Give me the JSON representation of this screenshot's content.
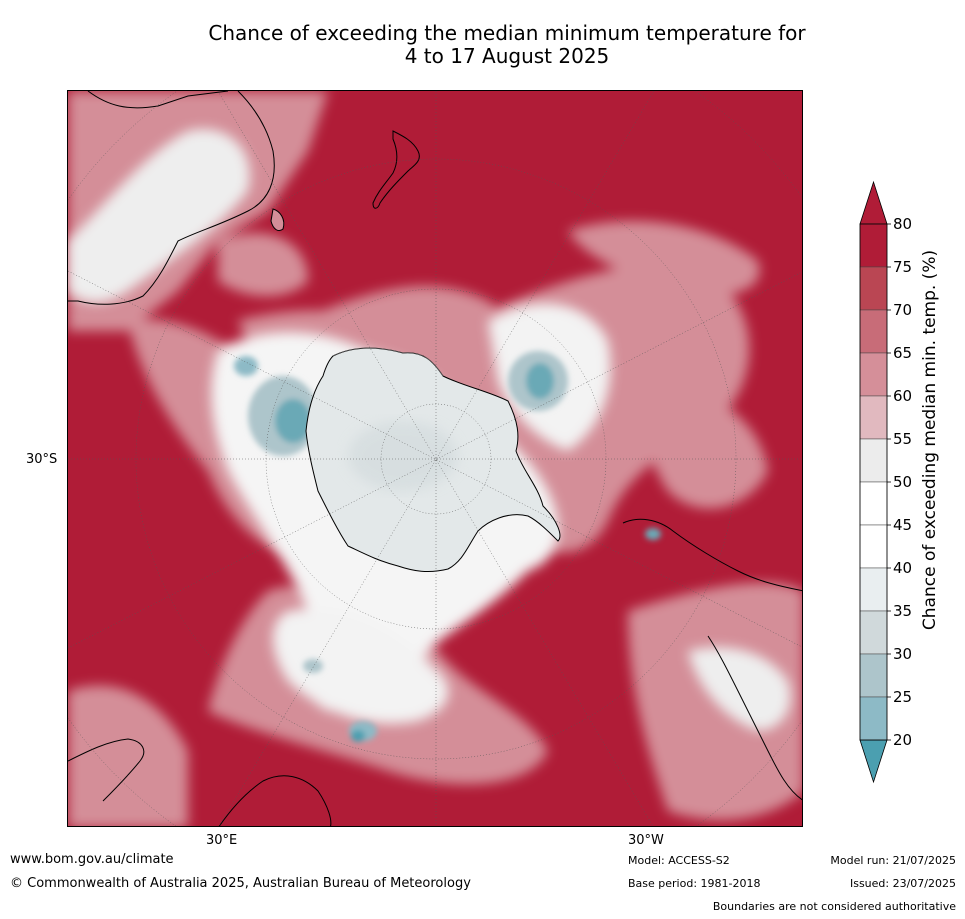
{
  "title": {
    "line1": "Chance of exceeding the median minimum temperature for",
    "line2": "4 to 17 August 2025"
  },
  "map": {
    "projection": "south polar stereographic",
    "axis_labels": {
      "lat_30s": "30°S",
      "lon_30e": "30°E",
      "lon_30w": "30°W"
    }
  },
  "colorbar": {
    "label": "Chance of exceeding median min. temp. (%)",
    "ticks": [
      "20",
      "25",
      "30",
      "35",
      "40",
      "45",
      "50",
      "55",
      "60",
      "65",
      "70",
      "75",
      "80"
    ],
    "colors": [
      "#6aa9b6",
      "#8dbac6",
      "#adc5cb",
      "#d0d9db",
      "#e9eef0",
      "#ffffff",
      "#ffffff",
      "#ececec",
      "#e1b9bf",
      "#d58f99",
      "#c86c78",
      "#ba4653",
      "#b01c37"
    ],
    "min_arrow_color": "#4b9fb0",
    "max_arrow_color": "#b01c37"
  },
  "footer": {
    "website": "www.bom.gov.au/climate",
    "copyright": "© Commonwealth of Australia 2025, Australian Bureau of Meteorology",
    "model": "Model: ACCESS-S2",
    "base_period": "Base period: 1981-2018",
    "model_run": "Model run: 21/07/2025",
    "issued": "Issued: 23/07/2025",
    "disclaimer": "Boundaries are not considered authoritative"
  }
}
